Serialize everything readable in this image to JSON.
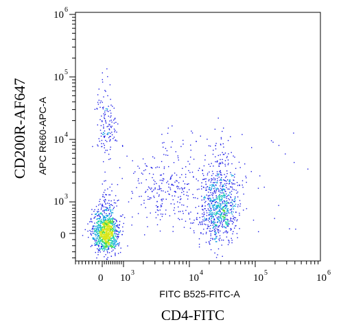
{
  "chart_data": {
    "type": "scatter",
    "subtype": "flow-cytometry-density-dot-plot",
    "x_axis": {
      "parameter_label": "FITC B525-FITC-A",
      "marker_label": "CD4-FITC",
      "scale": "biexponential",
      "range": [
        -800,
        1000000
      ],
      "tick_labels": [
        {
          "value": 0,
          "base": "0",
          "exp": ""
        },
        {
          "value": 1000,
          "base": "10",
          "exp": "3"
        },
        {
          "value": 10000,
          "base": "10",
          "exp": "4"
        },
        {
          "value": 100000,
          "base": "10",
          "exp": "5"
        },
        {
          "value": 1000000,
          "base": "10",
          "exp": "6"
        }
      ]
    },
    "y_axis": {
      "parameter_label": "APC R660-APC-A",
      "marker_label": "CD200R-AF647",
      "scale": "biexponential",
      "range": [
        -450,
        1000000
      ],
      "tick_labels": [
        {
          "value": 0,
          "base": "0",
          "exp": ""
        },
        {
          "value": 1000,
          "base": "10",
          "exp": "3"
        },
        {
          "value": 10000,
          "base": "10",
          "exp": "4"
        },
        {
          "value": 100000,
          "base": "10",
          "exp": "5"
        },
        {
          "value": 1000000,
          "base": "10",
          "exp": "6"
        }
      ]
    },
    "populations": [
      {
        "name": "CD4- CD200R- (dense)",
        "center": {
          "x": 150,
          "y": 0
        },
        "spread": "high density, yellow-green core"
      },
      {
        "name": "CD4+ CD200R- to low",
        "center": {
          "x": 28000,
          "y": 600
        },
        "spread": "vertical streak up to ~8000 on y"
      },
      {
        "name": "CD4- CD200R+ (sparse)",
        "center": {
          "x": 150,
          "y": 15000
        },
        "spread": "sparse"
      },
      {
        "name": "intermediate CD4 scatter",
        "center": {
          "x": 5000,
          "y": 1500
        },
        "spread": "sparse"
      }
    ],
    "density_colors": [
      "#1a1ae6",
      "#0a9fe0",
      "#19d0b0",
      "#4ddc3a",
      "#d9e61a"
    ],
    "grid": false
  }
}
